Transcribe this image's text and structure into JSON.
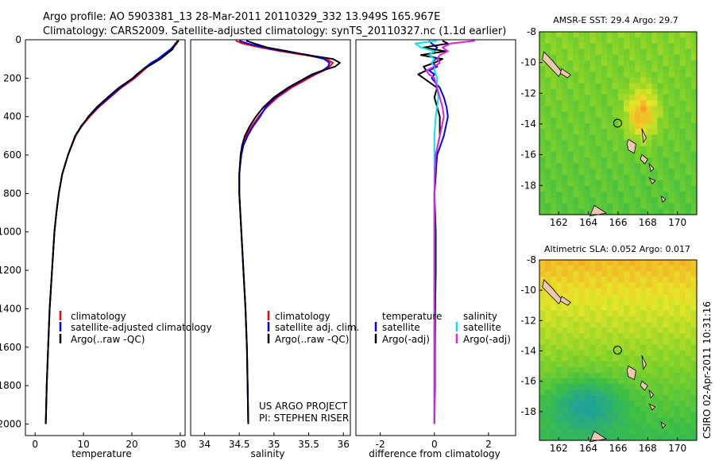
{
  "header": {
    "line1": "Argo profile: AO 5903381_13 28-Mar-2011 20110329_332 13.949S 165.967E",
    "line2": "Climatology: CARS2009. Satellite-adjusted climatology: synTS_20110327.nc (1.1d earlier)"
  },
  "colors": {
    "climatology": "#ff0000",
    "satellite": "#0000ff",
    "argo": "#000000",
    "sat_diff_sal": "#00e5ee",
    "argo_diff_sal": "#e020e0"
  },
  "depth_axis": {
    "ylim": [
      0,
      2060
    ],
    "ticks": [
      "0",
      "200",
      "400",
      "600",
      "800",
      "1000",
      "1200",
      "1400",
      "1600",
      "1800",
      "2000"
    ]
  },
  "chart_data": [
    {
      "type": "line",
      "panel": "temperature",
      "xlabel": "temperature",
      "xlim": [
        -2,
        31
      ],
      "xticks": [
        "0",
        "10",
        "20",
        "30"
      ],
      "depth": [
        5,
        20,
        50,
        80,
        100,
        120,
        150,
        180,
        200,
        250,
        300,
        350,
        400,
        450,
        500,
        600,
        700,
        800,
        900,
        1000,
        1200,
        1400,
        1600,
        1800,
        2000
      ],
      "series": [
        {
          "name": "climatology",
          "values": [
            29.6,
            29.3,
            28.2,
            26.5,
            25.5,
            24.2,
            22.8,
            21.5,
            20.6,
            17.8,
            15.5,
            13.2,
            11.3,
            9.6,
            8.4,
            6.8,
            5.6,
            4.9,
            4.4,
            4.0,
            3.5,
            3.0,
            2.7,
            2.4,
            2.2
          ]
        },
        {
          "name": "satellite-adjusted climatology",
          "values": [
            29.4,
            29.1,
            28.0,
            26.4,
            25.4,
            24.0,
            22.5,
            21.2,
            20.3,
            17.6,
            15.3,
            13.0,
            11.1,
            9.5,
            8.3,
            6.8,
            5.6,
            4.9,
            4.4,
            4.0,
            3.5,
            3.0,
            2.7,
            2.4,
            2.2
          ]
        },
        {
          "name": "Argo(..raw -QC)",
          "values": [
            29.7,
            29.0,
            28.4,
            26.9,
            25.9,
            24.6,
            22.6,
            21.0,
            20.2,
            17.3,
            15.0,
            12.8,
            11.0,
            9.6,
            8.3,
            6.8,
            5.6,
            4.9,
            4.4,
            4.0,
            3.5,
            3.0,
            2.7,
            2.4,
            2.2
          ]
        }
      ],
      "legend": [
        "climatology",
        "satellite-adjusted climatology",
        "Argo(..raw -QC)"
      ]
    },
    {
      "type": "line",
      "panel": "salinity",
      "xlabel": "salinity",
      "xlim": [
        33.8,
        36.1
      ],
      "xticks": [
        "34",
        "34.5",
        "35",
        "35.5",
        "36"
      ],
      "depth": [
        5,
        20,
        40,
        60,
        80,
        100,
        120,
        140,
        160,
        180,
        200,
        250,
        300,
        350,
        400,
        450,
        500,
        550,
        600,
        700,
        800,
        1000,
        1200,
        1400,
        1600,
        1800,
        2000
      ],
      "series": [
        {
          "name": "climatology",
          "values": [
            34.45,
            34.55,
            34.8,
            35.1,
            35.45,
            35.75,
            35.85,
            35.8,
            35.72,
            35.6,
            35.5,
            35.25,
            35.05,
            34.9,
            34.78,
            34.68,
            34.6,
            34.55,
            34.52,
            34.5,
            34.5,
            34.53,
            34.56,
            34.59,
            34.61,
            34.62,
            34.63
          ]
        },
        {
          "name": "satellite adj. clim.",
          "values": [
            34.5,
            34.62,
            34.85,
            35.15,
            35.5,
            35.72,
            35.8,
            35.78,
            35.7,
            35.58,
            35.46,
            35.22,
            35.02,
            34.88,
            34.8,
            34.7,
            34.62,
            34.56,
            34.53,
            34.5,
            34.5,
            34.53,
            34.56,
            34.59,
            34.61,
            34.62,
            34.63
          ]
        },
        {
          "name": "Argo(..raw -QC)",
          "values": [
            34.6,
            34.72,
            34.9,
            35.2,
            35.48,
            35.85,
            35.95,
            35.88,
            35.7,
            35.55,
            35.45,
            35.2,
            35.0,
            34.85,
            34.74,
            34.65,
            34.58,
            34.54,
            34.52,
            34.5,
            34.5,
            34.53,
            34.56,
            34.59,
            34.61,
            34.62,
            34.63
          ]
        }
      ],
      "legend": [
        "climatology",
        "satellite adj. clim.",
        "Argo(..raw -QC)"
      ],
      "annotation": [
        "US ARGO PROJECT",
        "PI: STEPHEN RISER"
      ]
    },
    {
      "type": "line",
      "panel": "difference",
      "xlabel": "difference from climatology",
      "xlim": [
        -2.9,
        3.0
      ],
      "xticks": [
        "-2",
        "0",
        "2"
      ],
      "depth": [
        5,
        20,
        40,
        60,
        80,
        100,
        120,
        140,
        160,
        180,
        200,
        250,
        300,
        350,
        400,
        500,
        600,
        700,
        800,
        1000,
        1200,
        1400,
        1600,
        1800,
        2000
      ],
      "series": [
        {
          "name": "temperature satellite",
          "values": [
            -0.2,
            -0.1,
            0.1,
            0.0,
            -0.2,
            0.05,
            -0.1,
            0.1,
            -0.2,
            0.0,
            -0.1,
            0.2,
            0.35,
            0.45,
            0.5,
            0.35,
            0.1,
            0.05,
            0.0,
            0.0,
            0.0,
            0.0,
            0.0,
            0.0,
            0.0
          ]
        },
        {
          "name": "temperature Argo(-adj)",
          "values": [
            0.3,
            0.5,
            -0.4,
            0.4,
            -0.5,
            0.3,
            0.0,
            -0.4,
            -0.3,
            -0.6,
            -0.4,
            0.1,
            0.0,
            0.1,
            0.2,
            0.2,
            0.05,
            0.05,
            0.0,
            0.05,
            0.05,
            0.03,
            0.02,
            0.02,
            0.0
          ]
        },
        {
          "name": "salinity satellite",
          "values": [
            0.1,
            -0.7,
            -0.5,
            0.0,
            -0.2,
            0.0,
            -0.1,
            0.0,
            0.0,
            0.05,
            0.1,
            0.1,
            0.15,
            0.1,
            0.05,
            0.0,
            0.0,
            0.0,
            0.0,
            0.0,
            0.0,
            0.0,
            0.0,
            0.0,
            0.0
          ]
        },
        {
          "name": "salinity Argo(-adj)",
          "values": [
            1.5,
            0.6,
            0.3,
            0.5,
            0.2,
            0.1,
            0.2,
            0.0,
            -0.3,
            -0.2,
            0.0,
            0.1,
            0.2,
            0.3,
            0.35,
            0.2,
            0.05,
            0.02,
            0.0,
            0.0,
            0.0,
            0.0,
            0.0,
            0.0,
            0.0
          ]
        }
      ],
      "legend_titles": [
        "temperature",
        "salinity"
      ],
      "legend": [
        "satellite",
        "Argo(-adj)",
        "satellite",
        "Argo(-adj)"
      ]
    },
    {
      "type": "heatmap",
      "panel": "sst-map",
      "title": "AMSR-E SST: 29.4 Argo: 29.7",
      "xticks": [
        "162",
        "164",
        "166",
        "168",
        "170"
      ],
      "yticks": [
        "-8",
        "-10",
        "-12",
        "-14",
        "-16",
        "-18"
      ],
      "xlim": [
        160.7,
        171.3
      ],
      "ylim": [
        -19.9,
        -8
      ],
      "argo_position": [
        165.967,
        -13.949
      ]
    },
    {
      "type": "heatmap",
      "panel": "sla-map",
      "title": "Altimetric SLA: 0.052 Argo: 0.017",
      "xticks": [
        "162",
        "164",
        "166",
        "168",
        "170"
      ],
      "yticks": [
        "-8",
        "-10",
        "-12",
        "-14",
        "-16",
        "-18"
      ],
      "xlim": [
        160.7,
        171.3
      ],
      "ylim": [
        -19.9,
        -8
      ],
      "argo_position": [
        165.967,
        -13.949
      ]
    }
  ],
  "credit": "CSIRO 02-Apr-2011 10:31:16"
}
